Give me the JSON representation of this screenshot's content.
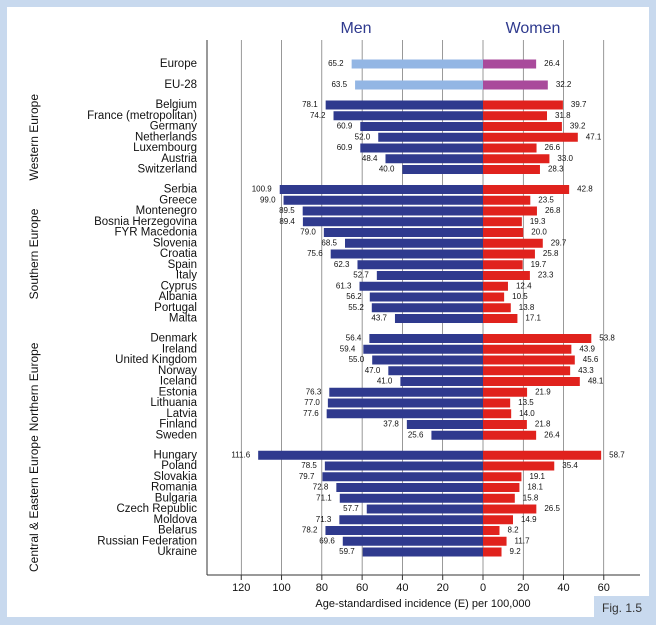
{
  "chart_data": {
    "type": "butterfly",
    "xlabel": "Age-standardised incidence (E) per 100,000",
    "figure_label": "Fig. 1.5",
    "xlim": [
      137,
      0
    ],
    "xticks": [
      120,
      100,
      80,
      60,
      40,
      20,
      0
    ],
    "x2lim": [
      0,
      78
    ],
    "x2ticks": [
      20,
      40,
      60
    ],
    "grid": true,
    "groups": [
      {
        "summary": true,
        "categories": [
          "Europe",
          "EU-28"
        ]
      },
      {
        "name": "Western Europe",
        "categories": [
          "Belgium",
          "France (metropolitan)",
          "Germany",
          "Netherlands",
          "Luxembourg",
          "Austria",
          "Switzerland"
        ]
      },
      {
        "name": "Southern Europe",
        "categories": [
          "Serbia",
          "Greece",
          "Montenegro",
          "Bosnia Herzegovina",
          "FYR Macedonia",
          "Slovenia",
          "Croatia",
          "Spain",
          "Italy",
          "Cyprus",
          "Albania",
          "Portugal",
          "Malta"
        ]
      },
      {
        "name": "Northern Europe",
        "categories": [
          "Denmark",
          "Ireland",
          "United Kingdom",
          "Norway",
          "Iceland",
          "Estonia",
          "Lithuania",
          "Latvia",
          "Finland",
          "Sweden"
        ]
      },
      {
        "name": "Central & Eastern Europe",
        "categories": [
          "Hungary",
          "Poland",
          "Slovakia",
          "Romania",
          "Bulgaria",
          "Czech Republic",
          "Moldova",
          "Belarus",
          "Russian Federation",
          "Ukraine"
        ]
      }
    ],
    "series": [
      {
        "name": "Men",
        "axis": "x",
        "color": "#2f3a8e",
        "summary_color": "#93b6e4",
        "values": [
          [
            65.2,
            63.5
          ],
          [
            78.1,
            74.2,
            60.9,
            52.0,
            60.9,
            48.4,
            40.0
          ],
          [
            100.9,
            99.0,
            89.5,
            89.4,
            79.0,
            68.5,
            75.6,
            62.3,
            52.7,
            61.3,
            56.2,
            55.2,
            43.7
          ],
          [
            56.4,
            59.4,
            55.0,
            47.0,
            41.0,
            76.3,
            77.0,
            77.6,
            37.8,
            25.6
          ],
          [
            111.6,
            78.5,
            79.7,
            72.8,
            71.1,
            57.7,
            71.3,
            78.2,
            69.6,
            59.7
          ]
        ],
        "value_labels": [
          [
            "65.2",
            "63.5"
          ],
          [
            "78.1",
            "74.2",
            "60.9",
            "52.0",
            "60.9",
            "48.4",
            "40.0"
          ],
          [
            "100.9",
            "99.0",
            "89.5",
            "89.4",
            "79.0",
            "68.5",
            "75.6",
            "62.3",
            "52.7",
            "61.3",
            "56.2",
            "55.2",
            "43.7"
          ],
          [
            "56.4",
            "59.4",
            "55.0",
            "47.0",
            "41.0",
            "76.3",
            "77.0",
            "77.6",
            "37.8",
            "25.6"
          ],
          [
            "111.6",
            "78.5",
            "79.7",
            "72.8",
            "71.1",
            "57.7",
            "71.3",
            "78.2",
            "69.6",
            "59.7"
          ]
        ]
      },
      {
        "name": "Women",
        "axis": "x2",
        "color": "#e0221d",
        "summary_color": "#a94a9b",
        "values": [
          [
            26.4,
            32.2
          ],
          [
            39.7,
            31.8,
            39.2,
            47.1,
            26.6,
            33.0,
            28.3
          ],
          [
            42.8,
            23.5,
            26.8,
            19.3,
            20.0,
            29.7,
            25.8,
            19.7,
            23.3,
            12.4,
            10.5,
            13.8,
            17.1
          ],
          [
            53.8,
            43.9,
            45.6,
            43.3,
            48.1,
            21.9,
            13.5,
            14.0,
            21.8,
            26.4
          ],
          [
            58.7,
            35.4,
            19.1,
            18.1,
            15.8,
            26.5,
            14.9,
            8.2,
            11.7,
            9.2
          ]
        ],
        "value_labels": [
          [
            "26.4",
            "32.2"
          ],
          [
            "39.7",
            "31.8",
            "39.2",
            "47.1",
            "26.6",
            "33.0",
            "28.3"
          ],
          [
            "42.8",
            "23.5",
            "26.8",
            "19.3",
            "20.0",
            "29.7",
            "25.8",
            "19.7",
            "23.3",
            "12.4",
            "10.5",
            "13.8",
            "17.1"
          ],
          [
            "53.8",
            "43.9",
            "45.6",
            "43.3",
            "48.1",
            "21.9",
            "13.5",
            "14.0",
            "21.8",
            "26.4"
          ],
          [
            "58.7",
            "35.4",
            "19.1",
            "18.1",
            "15.8",
            "26.5",
            "14.9",
            "8.2",
            "11.7",
            "9.2"
          ]
        ]
      }
    ]
  }
}
